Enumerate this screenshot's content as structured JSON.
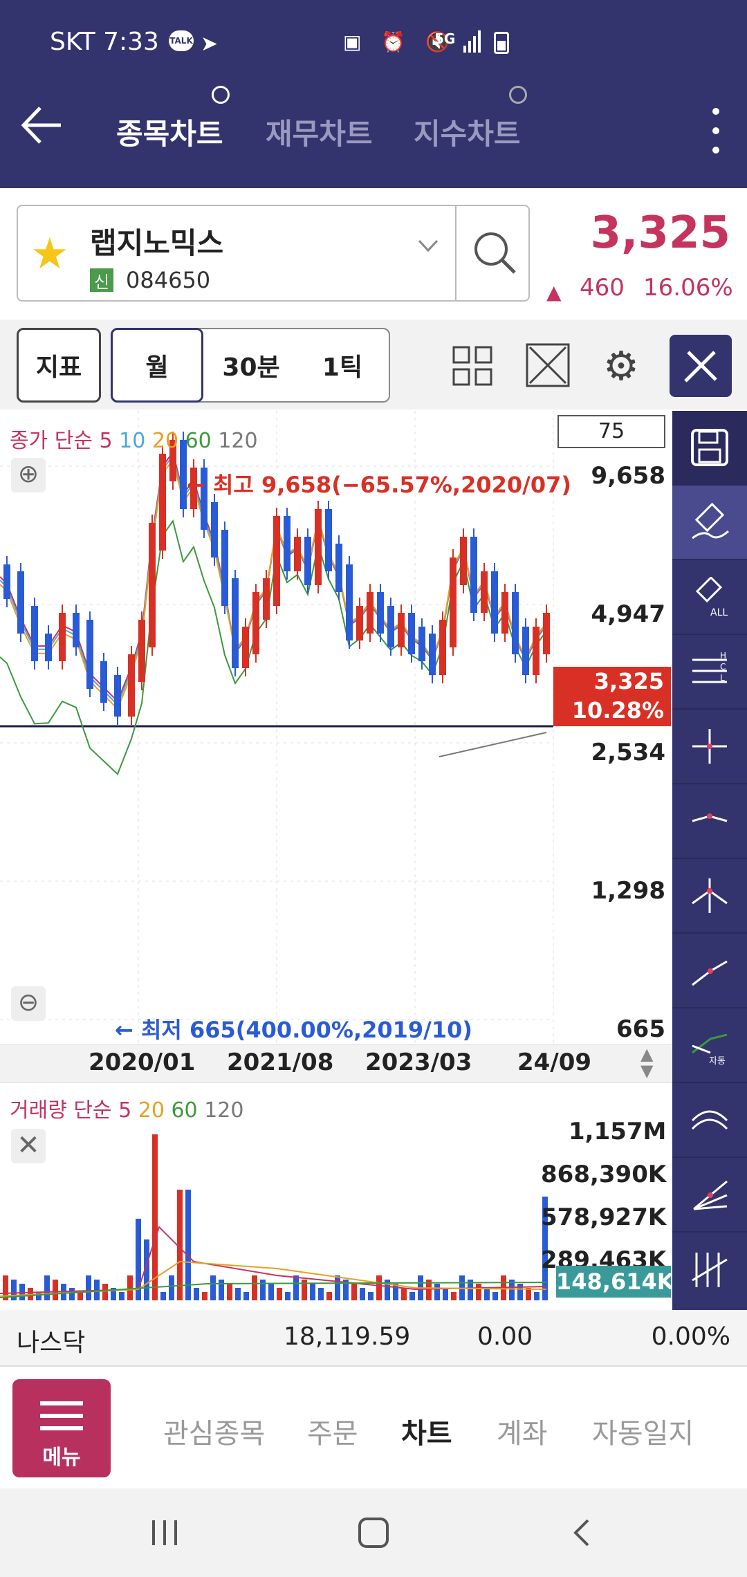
{
  "status": {
    "carrier": "SKT 7:33",
    "talk": "TALK",
    "net": "5G"
  },
  "tabs": [
    "종목차트",
    "재무차트",
    "지수차트"
  ],
  "stock": {
    "name": "랩지노믹스",
    "badge": "신",
    "code": "084650",
    "price": "3,325",
    "change": "460",
    "pct": "16.06%"
  },
  "toolbar": {
    "indicator": "지표",
    "month": "월",
    "min": "30분",
    "tick": "1틱"
  },
  "chart": {
    "legend_label": "종가 단순",
    "legend_nums": [
      "5",
      "10",
      "20",
      "60",
      "120"
    ],
    "count": "75",
    "high_note": "최고 9,658(−65.57%,2020/07)",
    "low_note": "최저 665(400.00%,2019/10)",
    "price_tag": "3,325",
    "price_tag_pct": "10.28%"
  },
  "chart_data": [
    {
      "type": "candlestick",
      "title": "종가 단순",
      "yticks": [
        "9,658",
        "4,947",
        "2,534",
        "1,298",
        "665"
      ],
      "xticks": [
        "2020/01",
        "2021/08",
        "2023/03",
        "24/09"
      ],
      "high": 9658,
      "low": 665,
      "last": 3325
    },
    {
      "type": "bar",
      "title": "거래량 단순",
      "yticks": [
        "1,157M",
        "868,390K",
        "578,927K",
        "289,463K"
      ],
      "last": "148,614K"
    }
  ],
  "volume": {
    "legend_label": "거래량 단순",
    "legend_nums": [
      "5",
      "20",
      "60",
      "120"
    ],
    "last": "148,614K"
  },
  "index": {
    "name": "나스닥",
    "value": "18,119.59",
    "change": "0.00",
    "pct": "0.00%"
  },
  "nav": {
    "menu": "메뉴",
    "items": [
      "관심종목",
      "주문",
      "차트",
      "계좌",
      "자동일지"
    ]
  },
  "side": {
    "all": "ALL",
    "hcl": [
      "H",
      "C",
      "L"
    ],
    "auto": "자동"
  },
  "colors": {
    "header": "#33336e",
    "up": "#d93025",
    "down": "#2a5bd7",
    "accent": "#c5335f"
  }
}
